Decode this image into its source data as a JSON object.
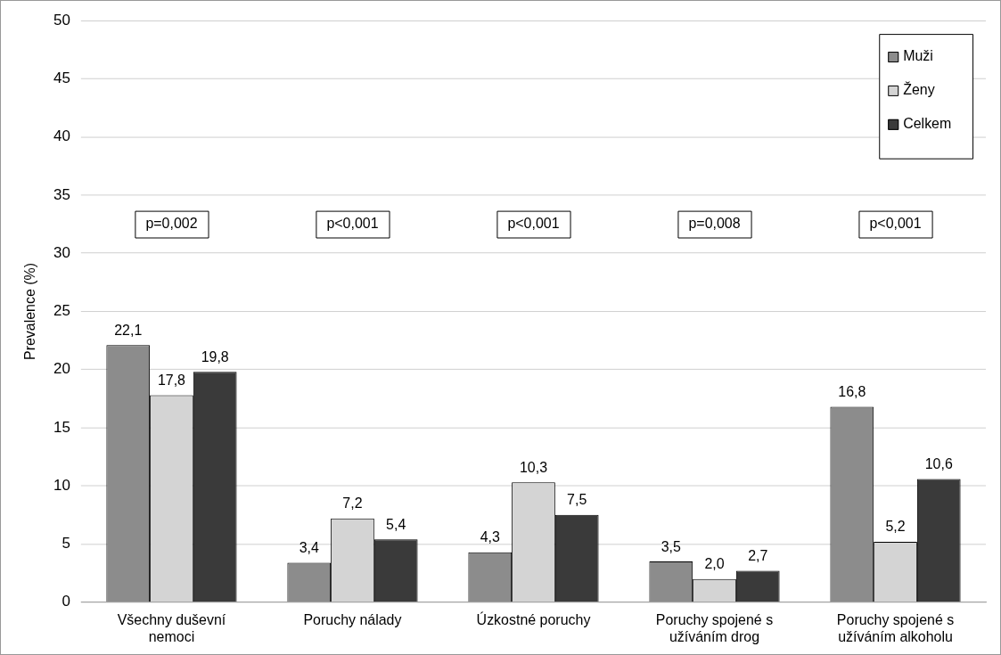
{
  "chart_data": {
    "type": "bar",
    "ylabel": "Prevalence (%)",
    "categories": [
      "Všechny duševní nemoci",
      "Poruchy nálady",
      "Úzkostné poruchy",
      "Poruchy spojené s užíváním drog",
      "Poruchy spojené s užíváním alkoholu"
    ],
    "series": [
      {
        "name": "Muži",
        "color": "#8c8c8c",
        "values": [
          22.1,
          3.4,
          4.3,
          3.5,
          16.8
        ],
        "value_labels": [
          "22,1",
          "3,4",
          "4,3",
          "3,5",
          "16,8"
        ]
      },
      {
        "name": "Ženy",
        "color": "#d4d4d4",
        "values": [
          17.8,
          7.2,
          10.3,
          2.0,
          5.2
        ],
        "value_labels": [
          "17,8",
          "7,2",
          "10,3",
          "2,0",
          "5,2"
        ]
      },
      {
        "name": "Celkem",
        "color": "#3a3a3a",
        "values": [
          19.8,
          5.4,
          7.5,
          2.7,
          10.6
        ],
        "value_labels": [
          "19,8",
          "5,4",
          "7,5",
          "2,7",
          "10,6"
        ]
      }
    ],
    "ylim": [
      0,
      50
    ],
    "yticks": [
      0,
      5,
      10,
      15,
      20,
      25,
      30,
      35,
      40,
      45,
      50
    ],
    "grid": "y",
    "legend": "top right",
    "annotations": [
      "p=0,002",
      "p<0,001",
      "p<0,001",
      "p=0,008",
      "p<0,001"
    ]
  }
}
